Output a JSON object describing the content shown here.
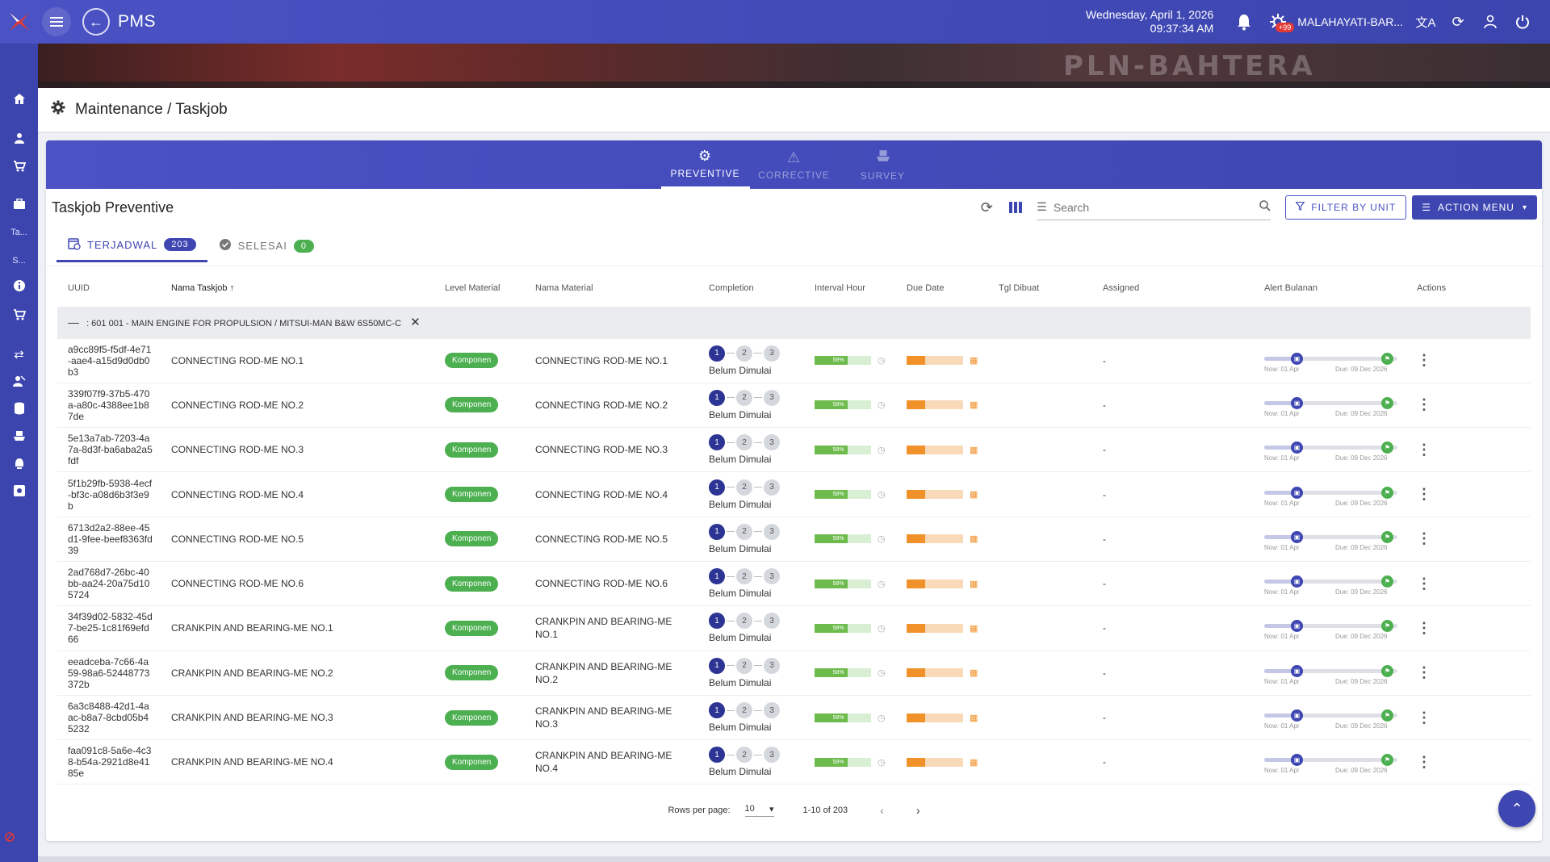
{
  "app": {
    "title": "PMS",
    "date": "Wednesday, April 1, 2026",
    "time": "09:37:34 AM",
    "vessel": "MALAHAYATI-BAR...",
    "notif_badge": "+99"
  },
  "sidebar": {
    "items": [
      {
        "icon": "home-icon"
      },
      {
        "icon": "person-icon"
      },
      {
        "icon": "cart-icon"
      },
      {
        "icon": "briefcase-icon"
      },
      {
        "label": "Ta..."
      },
      {
        "label": "S..."
      },
      {
        "icon": "info-icon"
      },
      {
        "icon": "cart-icon"
      },
      {
        "icon": "transfer-icon"
      },
      {
        "icon": "crew-icon"
      },
      {
        "icon": "database-icon"
      },
      {
        "icon": "ship-icon"
      },
      {
        "icon": "alarm-icon"
      },
      {
        "icon": "settings-box-icon"
      }
    ]
  },
  "banner": {
    "ship_text": "PLN-BAHTERA"
  },
  "breadcrumb": "Maintenance / Taskjob",
  "tabs": [
    {
      "label": "PREVENTIVE",
      "icon": "gears-icon",
      "active": true
    },
    {
      "label": "CORRECTIVE",
      "icon": "warning-icon",
      "active": false
    },
    {
      "label": "SURVEY",
      "icon": "ship-icon",
      "active": false
    }
  ],
  "card": {
    "title": "Taskjob Preventive",
    "search_placeholder": "Search",
    "filter_btn": "FILTER BY UNIT",
    "action_btn": "ACTION MENU"
  },
  "subtabs": [
    {
      "label": "TERJADWAL",
      "count": "203",
      "color": "#3e46b2"
    },
    {
      "label": "SELESAI",
      "count": "0",
      "color": "#4caf50"
    }
  ],
  "columns": [
    "UUID",
    "Nama Taskjob",
    "Level Material",
    "Nama Material",
    "Completion",
    "Interval Hour",
    "Due Date",
    "Tgl Dibuat",
    "Assigned",
    "Alert Bulanan",
    "Actions"
  ],
  "group_label": ": 601 001 - MAIN ENGINE FOR PROPULSION / MITSUI-MAN B&W 6S50MC-C",
  "rows": [
    {
      "uuid": "a9cc89f5-f5df-4e71-aae4-a15d9d0db0b3",
      "name": "CONNECTING ROD-ME NO.1",
      "level": "Komponen",
      "material": "CONNECTING ROD-ME NO.1",
      "status": "Belum Dimulai",
      "interval": 58,
      "due": 33,
      "assigned": "-"
    },
    {
      "uuid": "339f07f9-37b5-470a-a80c-4388ee1b87de",
      "name": "CONNECTING ROD-ME NO.2",
      "level": "Komponen",
      "material": "CONNECTING ROD-ME NO.2",
      "status": "Belum Dimulai",
      "interval": 58,
      "due": 33,
      "assigned": "-"
    },
    {
      "uuid": "5e13a7ab-7203-4a7a-8d3f-ba6aba2a5fdf",
      "name": "CONNECTING ROD-ME NO.3",
      "level": "Komponen",
      "material": "CONNECTING ROD-ME NO.3",
      "status": "Belum Dimulai",
      "interval": 58,
      "due": 33,
      "assigned": "-"
    },
    {
      "uuid": "5f1b29fb-5938-4ecf-bf3c-a08d6b3f3e9b",
      "name": "CONNECTING ROD-ME NO.4",
      "level": "Komponen",
      "material": "CONNECTING ROD-ME NO.4",
      "status": "Belum Dimulai",
      "interval": 58,
      "due": 33,
      "assigned": "-"
    },
    {
      "uuid": "6713d2a2-88ee-45d1-9fee-beef8363fd39",
      "name": "CONNECTING ROD-ME NO.5",
      "level": "Komponen",
      "material": "CONNECTING ROD-ME NO.5",
      "status": "Belum Dimulai",
      "interval": 58,
      "due": 33,
      "assigned": "-"
    },
    {
      "uuid": "2ad768d7-26bc-40bb-aa24-20a75d105724",
      "name": "CONNECTING ROD-ME NO.6",
      "level": "Komponen",
      "material": "CONNECTING ROD-ME NO.6",
      "status": "Belum Dimulai",
      "interval": 58,
      "due": 33,
      "assigned": "-"
    },
    {
      "uuid": "34f39d02-5832-45d7-be25-1c81f69efd66",
      "name": "CRANKPIN AND BEARING-ME NO.1",
      "level": "Komponen",
      "material": "CRANKPIN AND BEARING-ME NO.1",
      "status": "Belum Dimulai",
      "interval": 58,
      "due": 33,
      "assigned": "-"
    },
    {
      "uuid": "eeadceba-7c66-4a59-98a6-52448773372b",
      "name": "CRANKPIN AND BEARING-ME NO.2",
      "level": "Komponen",
      "material": "CRANKPIN AND BEARING-ME NO.2",
      "status": "Belum Dimulai",
      "interval": 58,
      "due": 33,
      "assigned": "-"
    },
    {
      "uuid": "6a3c8488-42d1-4aac-b8a7-8cbd05b45232",
      "name": "CRANKPIN AND BEARING-ME NO.3",
      "level": "Komponen",
      "material": "CRANKPIN AND BEARING-ME NO.3",
      "status": "Belum Dimulai",
      "interval": 58,
      "due": 33,
      "assigned": "-"
    },
    {
      "uuid": "faa091c8-5a6e-4c38-b54a-2921d8e4185e",
      "name": "CRANKPIN AND BEARING-ME NO.4",
      "level": "Komponen",
      "material": "CRANKPIN AND BEARING-ME NO.4",
      "status": "Belum Dimulai",
      "interval": 58,
      "due": 33,
      "assigned": "-"
    }
  ],
  "alert": {
    "now_label": "Now: 01 Apr",
    "due_label": "Due: 09 Dec 2026"
  },
  "pager": {
    "rows_label": "Rows per page:",
    "rows_value": "10",
    "range": "1-10 of 203"
  },
  "colors": {
    "primary": "#3e46b2",
    "success": "#4caf50",
    "warn": "#f0912a"
  }
}
